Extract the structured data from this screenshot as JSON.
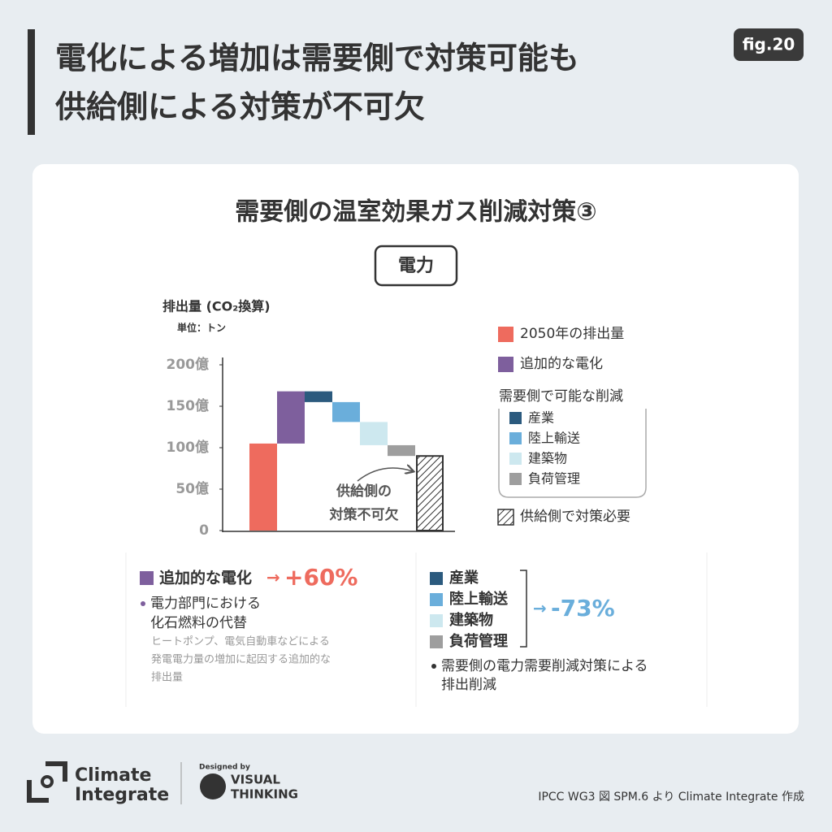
{
  "header": {
    "title_lines": [
      "電化による増加は需要側で対策可能も",
      "供給側による対策が不可欠"
    ],
    "fig": "fig.20"
  },
  "card": {
    "title": "需要側の温室効果ガス削減対策③",
    "tag": "電力"
  },
  "chart_data": {
    "type": "waterfall",
    "y_label": "排出量 (CO₂換算)",
    "unit": "単位：トン",
    "ylim": [
      0,
      200
    ],
    "yticks": [
      0,
      {
        "value": 50,
        "label": "50億"
      },
      {
        "value": 100,
        "label": "100億"
      },
      {
        "value": 150,
        "label": "150億"
      },
      {
        "value": 200,
        "label": "200億"
      }
    ],
    "series": [
      {
        "name": "2050年の排出量",
        "color": "#ee6b5e",
        "values": [
          105
        ],
        "kind": "total"
      },
      {
        "name": "追加的な電化",
        "color": "#7e5f9d",
        "values": [
          63
        ],
        "kind": "delta"
      },
      {
        "name": "産業",
        "color": "#2b5a7e",
        "values": [
          -13
        ],
        "kind": "delta",
        "group": "demand"
      },
      {
        "name": "陸上輸送",
        "color": "#6aaedb",
        "values": [
          -24
        ],
        "kind": "delta",
        "group": "demand"
      },
      {
        "name": "建築物",
        "color": "#cde8ef",
        "values": [
          -28
        ],
        "kind": "delta",
        "group": "demand"
      },
      {
        "name": "負荷管理",
        "color": "#9e9e9e",
        "values": [
          -13
        ],
        "kind": "delta",
        "group": "demand"
      },
      {
        "name": "供給側で対策必要",
        "color": "#333333",
        "values": [
          90
        ],
        "kind": "total",
        "pattern": "hatch"
      }
    ],
    "legend_group": "需要側で可能な削減",
    "annotation": [
      "供給側の",
      "対策不可欠"
    ]
  },
  "summary_left": {
    "change": "+60%",
    "bullet": [
      "電力部門における",
      "化石燃料の代替"
    ],
    "note": [
      "ヒートポンプ、電気自動車などによる",
      "発電電力量の増加に起因する追加的な",
      "排出量"
    ]
  },
  "summary_right": {
    "change": "-73%",
    "bullet": [
      "需要側の電力需要削減対策による",
      "排出削減"
    ]
  },
  "footer": {
    "brand": [
      "Climate",
      "Integrate"
    ],
    "designed_by": "Designed by",
    "partner": [
      "VISUAL",
      "THINKING"
    ],
    "source": "IPCC WG3 図 SPM.6 より Climate Integrate 作成"
  }
}
